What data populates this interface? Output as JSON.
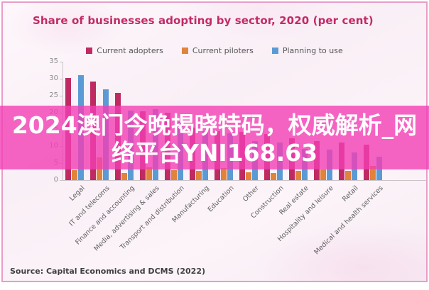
{
  "page": {
    "source_note": "Source: Capital Economics and DCMS (2022)"
  },
  "overlay_banner": {
    "line1": "2024澳门今晚揭晓特码，权威解析_网",
    "line2": "络平台YNI168.63",
    "full_text": "2024澳门今晚揭晓特码，权威解析_网络平台YNI168.63",
    "background_color": "#f23eb4",
    "text_color": "#ffffff"
  },
  "chart_data": {
    "type": "bar",
    "title": "Share of businesses adopting by sector, 2020 (per cent)",
    "title_color": "#c22a66",
    "xlabel": "",
    "ylabel": "",
    "ylim": [
      0,
      35
    ],
    "yticks": [
      0,
      5,
      10,
      15,
      20,
      25,
      30,
      35
    ],
    "grid": false,
    "legend_position": "top-center",
    "categories": [
      "Legal",
      "IT and telecoms",
      "Finance and accounting",
      "Media, advertising & sales",
      "Transport and distribution",
      "Manufacturing",
      "Education",
      "Other",
      "Construction",
      "Real estate",
      "Hospitality and leisure",
      "Retail",
      "Medical and health services"
    ],
    "series": [
      {
        "name": "Current adopters",
        "color": "#bf2a62",
        "values": [
          30.2,
          29.2,
          25.8,
          20.4,
          20.0,
          15.5,
          14.4,
          14.3,
          13.6,
          12.3,
          11.6,
          11.2,
          10.5
        ]
      },
      {
        "name": "Current piloters",
        "color": "#e2833b",
        "values": [
          2.9,
          6.8,
          2.0,
          3.8,
          3.0,
          2.8,
          3.5,
          2.3,
          2.2,
          2.8,
          3.2,
          2.8,
          4.2
        ]
      },
      {
        "name": "Planning to use",
        "color": "#5b9bd5",
        "values": [
          31.0,
          26.8,
          20.6,
          21.0,
          17.2,
          14.4,
          13.9,
          11.6,
          11.2,
          9.3,
          9.1,
          8.1,
          7.0
        ]
      }
    ]
  }
}
